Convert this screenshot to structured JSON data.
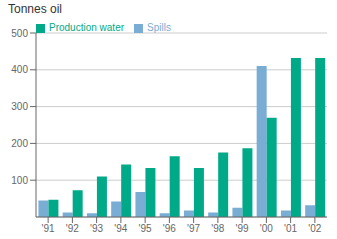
{
  "chart_data": {
    "type": "bar",
    "title": "Tonnes oil",
    "categories": [
      "'91",
      "'92",
      "'93",
      "'94",
      "'95",
      "'96",
      "'97",
      "'98",
      "'99",
      "'00",
      "'01",
      "'02"
    ],
    "series": [
      {
        "name": "Spills",
        "color": "#7aadd4",
        "values": [
          45,
          12,
          10,
          42,
          68,
          10,
          18,
          12,
          25,
          410,
          18,
          32
        ]
      },
      {
        "name": "Production water",
        "color": "#00aa88",
        "values": [
          47,
          73,
          110,
          143,
          133,
          165,
          133,
          175,
          187,
          270,
          432,
          432
        ]
      }
    ],
    "ylim": [
      0,
      500
    ],
    "yticks": [
      100,
      200,
      300,
      400,
      500
    ],
    "grid": true,
    "legend": "upper left"
  }
}
